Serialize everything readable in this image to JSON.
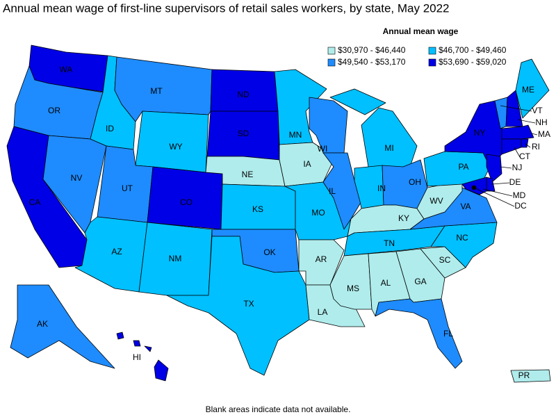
{
  "title": "Annual mean wage of first-line supervisors of retail sales workers, by state, May 2022",
  "legend": {
    "title": "Annual mean wage",
    "items": [
      {
        "label": "$30,970 - $46,440",
        "color": "#b0ecec"
      },
      {
        "label": "$46,700 - $49,460",
        "color": "#00c0ff"
      },
      {
        "label": "$49,540 - $53,170",
        "color": "#1e8cff"
      },
      {
        "label": "$53,690 - $59,020",
        "color": "#0000e6"
      }
    ]
  },
  "states": [
    {
      "abbr": "WA",
      "class": 3
    },
    {
      "abbr": "OR",
      "class": 2
    },
    {
      "abbr": "CA",
      "class": 3
    },
    {
      "abbr": "NV",
      "class": 2
    },
    {
      "abbr": "ID",
      "class": 1
    },
    {
      "abbr": "MT",
      "class": 2
    },
    {
      "abbr": "WY",
      "class": 1
    },
    {
      "abbr": "UT",
      "class": 2
    },
    {
      "abbr": "CO",
      "class": 3
    },
    {
      "abbr": "AZ",
      "class": 1
    },
    {
      "abbr": "NM",
      "class": 1
    },
    {
      "abbr": "ND",
      "class": 3
    },
    {
      "abbr": "SD",
      "class": 3
    },
    {
      "abbr": "NE",
      "class": 0
    },
    {
      "abbr": "KS",
      "class": 1
    },
    {
      "abbr": "OK",
      "class": 2
    },
    {
      "abbr": "TX",
      "class": 1
    },
    {
      "abbr": "MN",
      "class": 1
    },
    {
      "abbr": "IA",
      "class": 0
    },
    {
      "abbr": "MO",
      "class": 1
    },
    {
      "abbr": "AR",
      "class": 0
    },
    {
      "abbr": "LA",
      "class": 0
    },
    {
      "abbr": "WI",
      "class": 2
    },
    {
      "abbr": "IL",
      "class": 2
    },
    {
      "abbr": "MI",
      "class": 1
    },
    {
      "abbr": "IN",
      "class": 1
    },
    {
      "abbr": "OH",
      "class": 2
    },
    {
      "abbr": "KY",
      "class": 0
    },
    {
      "abbr": "TN",
      "class": 1
    },
    {
      "abbr": "MS",
      "class": 0
    },
    {
      "abbr": "AL",
      "class": 0
    },
    {
      "abbr": "GA",
      "class": 0
    },
    {
      "abbr": "FL",
      "class": 2
    },
    {
      "abbr": "SC",
      "class": 0
    },
    {
      "abbr": "NC",
      "class": 1
    },
    {
      "abbr": "VA",
      "class": 2
    },
    {
      "abbr": "WV",
      "class": 0
    },
    {
      "abbr": "PA",
      "class": 1
    },
    {
      "abbr": "NY",
      "class": 3
    },
    {
      "abbr": "VT",
      "class": 2
    },
    {
      "abbr": "NH",
      "class": 3
    },
    {
      "abbr": "ME",
      "class": 1
    },
    {
      "abbr": "MA",
      "class": 3
    },
    {
      "abbr": "RI",
      "class": 3
    },
    {
      "abbr": "CT",
      "class": 3
    },
    {
      "abbr": "NJ",
      "class": 3
    },
    {
      "abbr": "DE",
      "class": 3
    },
    {
      "abbr": "MD",
      "class": 3
    },
    {
      "abbr": "DC",
      "class": 3
    },
    {
      "abbr": "AK",
      "class": 2
    },
    {
      "abbr": "HI",
      "class": 3
    },
    {
      "abbr": "PR",
      "class": 0
    }
  ],
  "note": "Blank areas indicate data not available."
}
